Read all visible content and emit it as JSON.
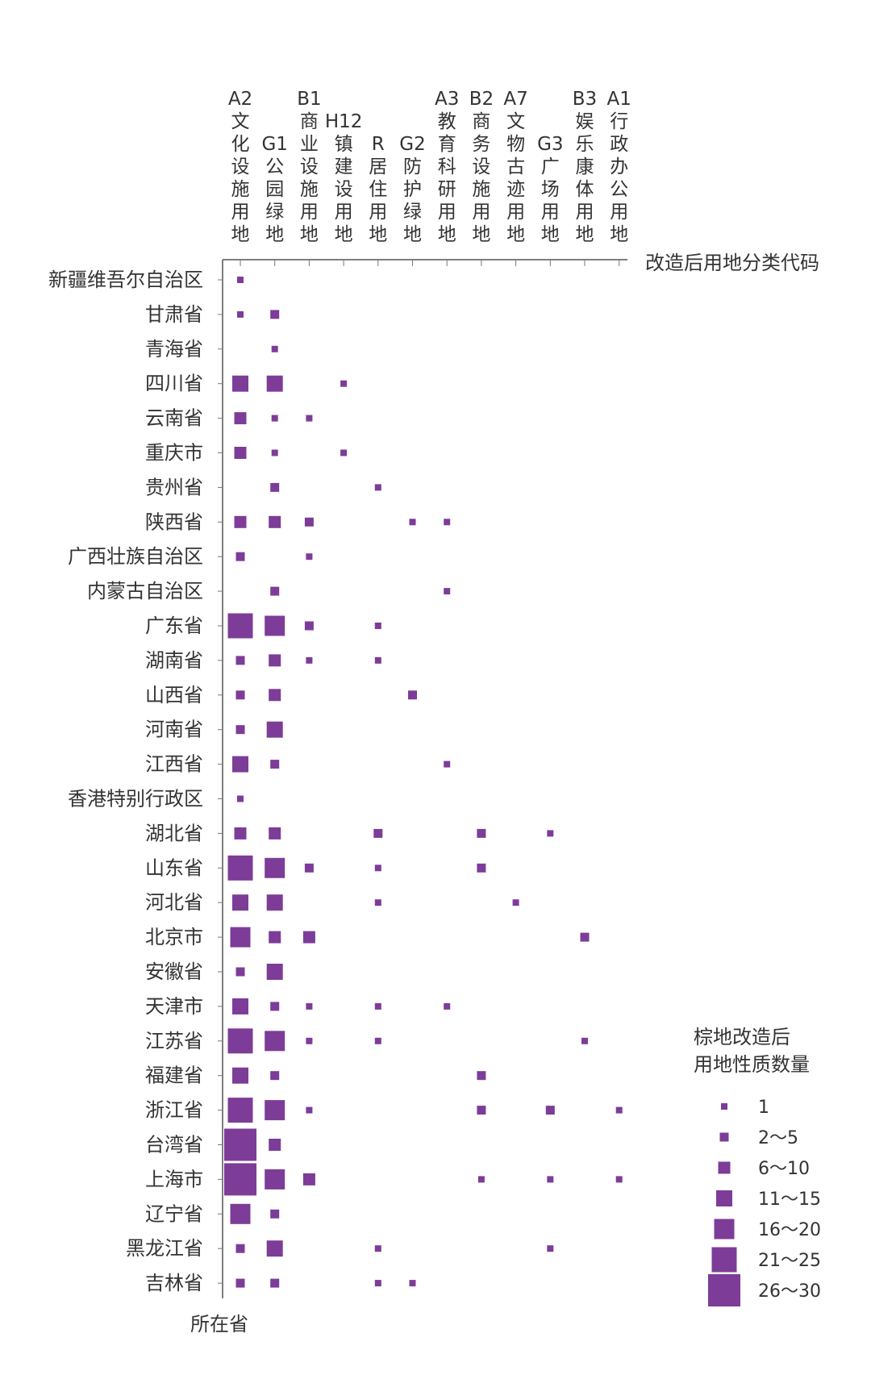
{
  "chart_data": {
    "type": "scatter",
    "marker": "square",
    "xlabel": "改造后用地分类代码",
    "ylabel": "所在省",
    "columns": [
      [
        "A2",
        "文",
        "化",
        "设",
        "施",
        "用",
        "地"
      ],
      [
        "G1",
        "公",
        "园",
        "绿",
        "地"
      ],
      [
        "B1",
        "商",
        "业",
        "设",
        "施",
        "用",
        "地"
      ],
      [
        "H12",
        "镇",
        "建",
        "设",
        "用",
        "地"
      ],
      [
        "R",
        "居",
        "住",
        "用",
        "地"
      ],
      [
        "G2",
        "防",
        "护",
        "绿",
        "地"
      ],
      [
        "A3",
        "教",
        "育",
        "科",
        "研",
        "用",
        "地"
      ],
      [
        "B2",
        "商",
        "务",
        "设",
        "施",
        "用",
        "地"
      ],
      [
        "A7",
        "文",
        "物",
        "古",
        "迹",
        "用",
        "地"
      ],
      [
        "G3",
        "广",
        "场",
        "用",
        "地"
      ],
      [
        "B3",
        "娱",
        "乐",
        "康",
        "体",
        "用",
        "地"
      ],
      [
        "A1",
        "行",
        "政",
        "办",
        "公",
        "用",
        "地"
      ]
    ],
    "rows": [
      "新疆维吾尔自治区",
      "甘肃省",
      "青海省",
      "四川省",
      "云南省",
      "重庆市",
      "贵州省",
      "陕西省",
      "广西壮族自治区",
      "内蒙古自治区",
      "广东省",
      "湖南省",
      "山西省",
      "河南省",
      "江西省",
      "香港特别行政区",
      "湖北省",
      "山东省",
      "河北省",
      "北京市",
      "安徽省",
      "天津市",
      "江苏省",
      "福建省",
      "浙江省",
      "台湾省",
      "上海市",
      "辽宁省",
      "黑龙江省",
      "吉林省"
    ],
    "legend_title": [
      "棕地改造后",
      "用地性质数量"
    ],
    "legend": [
      {
        "label": "1",
        "level": 1
      },
      {
        "label": "2～5",
        "level": 2
      },
      {
        "label": "6～10",
        "level": 3
      },
      {
        "label": "11～15",
        "level": 4
      },
      {
        "label": "16～20",
        "level": 5
      },
      {
        "label": "21～25",
        "level": 6
      },
      {
        "label": "26～30",
        "level": 7
      }
    ],
    "marker_color": "#7d3c98",
    "cells": [
      [
        1,
        0,
        0,
        0,
        0,
        0,
        0,
        0,
        0,
        0,
        0,
        0
      ],
      [
        1,
        2,
        0,
        0,
        0,
        0,
        0,
        0,
        0,
        0,
        0,
        0
      ],
      [
        0,
        1,
        0,
        0,
        0,
        0,
        0,
        0,
        0,
        0,
        0,
        0
      ],
      [
        4,
        4,
        0,
        1,
        0,
        0,
        0,
        0,
        0,
        0,
        0,
        0
      ],
      [
        3,
        1,
        1,
        0,
        0,
        0,
        0,
        0,
        0,
        0,
        0,
        0
      ],
      [
        3,
        1,
        0,
        1,
        0,
        0,
        0,
        0,
        0,
        0,
        0,
        0
      ],
      [
        0,
        2,
        0,
        0,
        1,
        0,
        0,
        0,
        0,
        0,
        0,
        0
      ],
      [
        3,
        3,
        2,
        0,
        0,
        1,
        1,
        0,
        0,
        0,
        0,
        0
      ],
      [
        2,
        0,
        1,
        0,
        0,
        0,
        0,
        0,
        0,
        0,
        0,
        0
      ],
      [
        0,
        2,
        0,
        0,
        0,
        0,
        1,
        0,
        0,
        0,
        0,
        0
      ],
      [
        6,
        5,
        2,
        0,
        1,
        0,
        0,
        0,
        0,
        0,
        0,
        0
      ],
      [
        2,
        3,
        1,
        0,
        1,
        0,
        0,
        0,
        0,
        0,
        0,
        0
      ],
      [
        2,
        3,
        0,
        0,
        0,
        2,
        0,
        0,
        0,
        0,
        0,
        0
      ],
      [
        2,
        4,
        0,
        0,
        0,
        0,
        0,
        0,
        0,
        0,
        0,
        0
      ],
      [
        4,
        2,
        0,
        0,
        0,
        0,
        1,
        0,
        0,
        0,
        0,
        0
      ],
      [
        1,
        0,
        0,
        0,
        0,
        0,
        0,
        0,
        0,
        0,
        0,
        0
      ],
      [
        3,
        3,
        0,
        0,
        2,
        0,
        0,
        2,
        0,
        1,
        0,
        0
      ],
      [
        6,
        5,
        2,
        0,
        1,
        0,
        0,
        2,
        0,
        0,
        0,
        0
      ],
      [
        4,
        4,
        0,
        0,
        1,
        0,
        0,
        0,
        1,
        0,
        0,
        0
      ],
      [
        5,
        3,
        3,
        0,
        0,
        0,
        0,
        0,
        0,
        0,
        2,
        0
      ],
      [
        2,
        4,
        0,
        0,
        0,
        0,
        0,
        0,
        0,
        0,
        0,
        0
      ],
      [
        4,
        2,
        1,
        0,
        1,
        0,
        1,
        0,
        0,
        0,
        0,
        0
      ],
      [
        6,
        5,
        1,
        0,
        1,
        0,
        0,
        0,
        0,
        0,
        1,
        0
      ],
      [
        4,
        2,
        0,
        0,
        0,
        0,
        0,
        2,
        0,
        0,
        0,
        0
      ],
      [
        6,
        5,
        1,
        0,
        0,
        0,
        0,
        2,
        0,
        2,
        0,
        1
      ],
      [
        7,
        3,
        0,
        0,
        0,
        0,
        0,
        0,
        0,
        0,
        0,
        0
      ],
      [
        7,
        5,
        3,
        0,
        0,
        0,
        0,
        1,
        0,
        1,
        0,
        1
      ],
      [
        5,
        2,
        0,
        0,
        0,
        0,
        0,
        0,
        0,
        0,
        0,
        0
      ],
      [
        2,
        4,
        0,
        0,
        1,
        0,
        0,
        0,
        0,
        1,
        0,
        0
      ],
      [
        2,
        2,
        0,
        0,
        1,
        1,
        0,
        0,
        0,
        0,
        0,
        0
      ]
    ]
  }
}
